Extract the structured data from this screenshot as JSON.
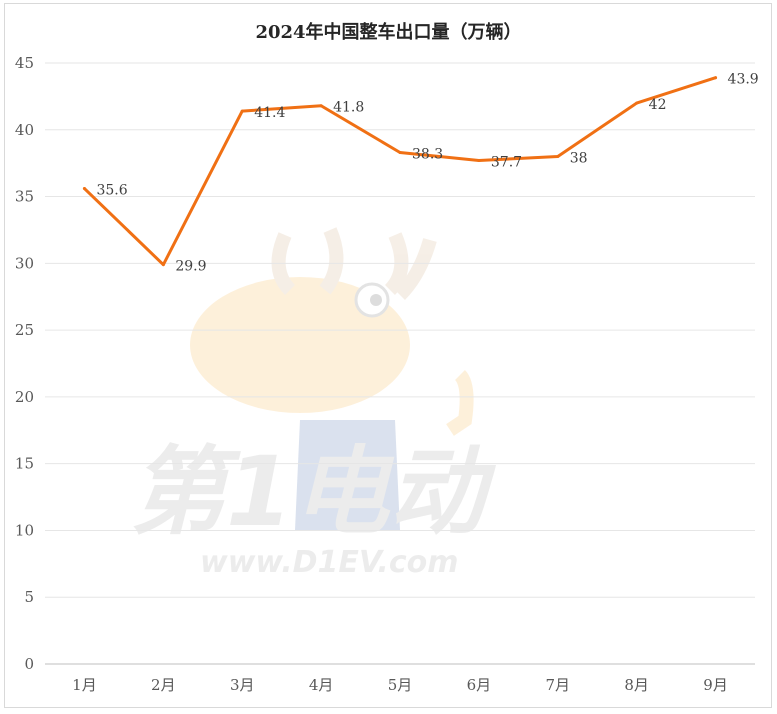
{
  "chart_data": {
    "type": "line",
    "title": "2024年中国整车出口量（万辆）",
    "categories": [
      "1月",
      "2月",
      "3月",
      "4月",
      "5月",
      "6月",
      "7月",
      "8月",
      "9月"
    ],
    "series": [
      {
        "values": [
          35.6,
          29.9,
          41.4,
          41.8,
          38.3,
          37.7,
          38,
          42,
          43.9
        ]
      }
    ],
    "ylim": [
      0,
      45
    ],
    "yticks": [
      0,
      5,
      10,
      15,
      20,
      25,
      30,
      35,
      40,
      45
    ],
    "grid": true,
    "legend": "none",
    "line_color": "#f07014"
  },
  "watermark": {
    "text_cn": "第1电动",
    "text_url": "www.D1EV.com"
  }
}
